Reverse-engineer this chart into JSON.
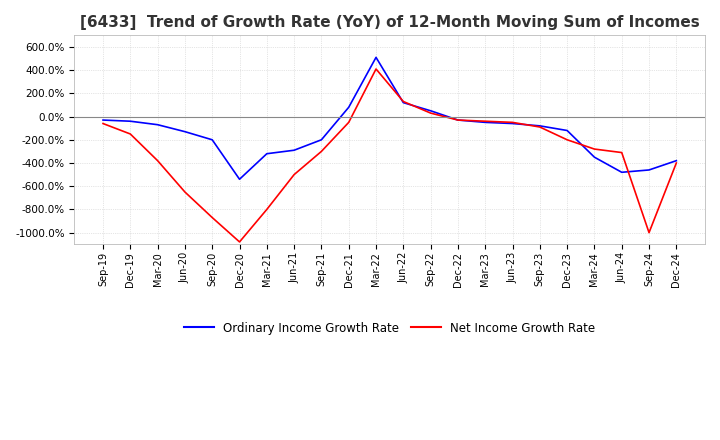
{
  "title": "[6433]  Trend of Growth Rate (YoY) of 12-Month Moving Sum of Incomes",
  "title_fontsize": 11,
  "background_color": "#ffffff",
  "grid_color": "#cccccc",
  "ylim": [
    -1100,
    700
  ],
  "yticks": [
    -1000,
    -800,
    -600,
    -400,
    -200,
    0,
    200,
    400,
    600
  ],
  "legend_labels": [
    "Ordinary Income Growth Rate",
    "Net Income Growth Rate"
  ],
  "legend_colors": [
    "#0000ff",
    "#ff0000"
  ],
  "x_labels": [
    "Sep-19",
    "Dec-19",
    "Mar-20",
    "Jun-20",
    "Sep-20",
    "Dec-20",
    "Mar-21",
    "Jun-21",
    "Sep-21",
    "Dec-21",
    "Mar-22",
    "Jun-22",
    "Sep-22",
    "Dec-22",
    "Mar-23",
    "Jun-23",
    "Sep-23",
    "Dec-23",
    "Mar-24",
    "Jun-24",
    "Sep-24",
    "Dec-24"
  ],
  "ordinary_income_growth": [
    -30,
    -40,
    -70,
    -130,
    -200,
    -540,
    -320,
    -290,
    -200,
    80,
    510,
    120,
    50,
    -30,
    -50,
    -60,
    -80,
    -120,
    -350,
    -480,
    -460,
    -380
  ],
  "net_income_growth": [
    -60,
    -150,
    -380,
    -650,
    -870,
    -1080,
    -800,
    -500,
    -300,
    -50,
    410,
    130,
    30,
    -30,
    -40,
    -50,
    -90,
    -200,
    -280,
    -310,
    -1000,
    -400
  ]
}
